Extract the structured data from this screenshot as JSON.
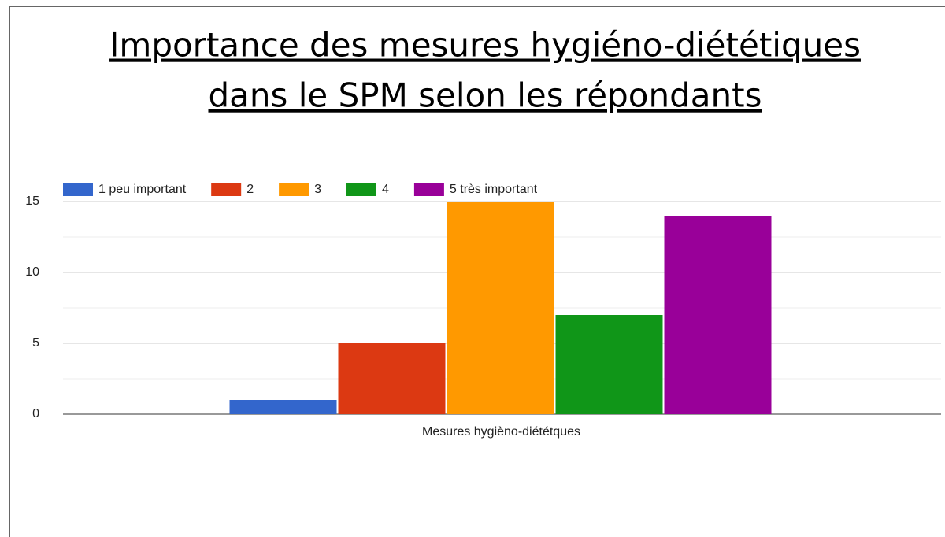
{
  "chart_data": {
    "type": "bar",
    "title": [
      "Importance des mesures hygiéno-diététiques",
      "dans le SPM selon les répondants"
    ],
    "categories": [
      "Mesures hygièno-diététques"
    ],
    "series": [
      {
        "name": "1 peu important",
        "color": "#3366cc",
        "values": [
          1
        ]
      },
      {
        "name": "2",
        "color": "#dc3912",
        "values": [
          5
        ]
      },
      {
        "name": "3",
        "color": "#ff9900",
        "values": [
          15
        ]
      },
      {
        "name": "4",
        "color": "#109618",
        "values": [
          7
        ]
      },
      {
        "name": "5 très important",
        "color": "#990099",
        "values": [
          14
        ]
      }
    ],
    "ylim": [
      0,
      15
    ],
    "yticks": [
      0,
      5,
      10,
      15
    ],
    "grid": true,
    "legend": "top"
  }
}
